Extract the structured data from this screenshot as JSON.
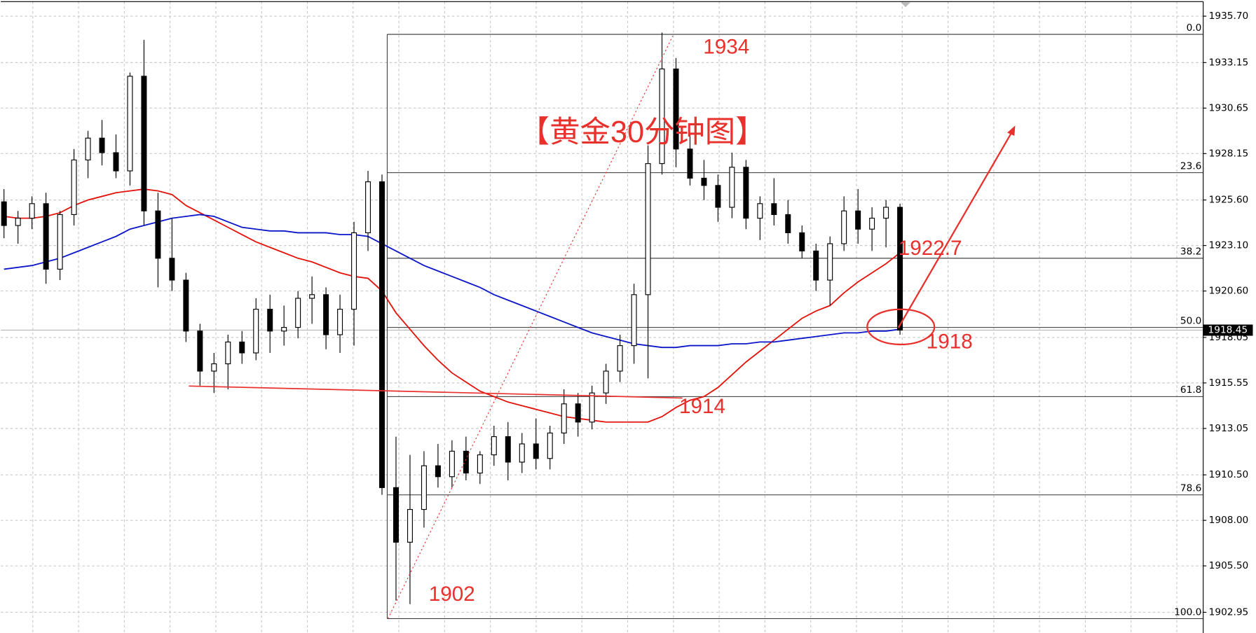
{
  "chart_data": {
    "type": "candlestick",
    "title": "【黄金30分钟图】",
    "annotations": [
      "1934",
      "1922.7",
      "1918",
      "1914",
      "1902"
    ],
    "ylim": [
      1901.9,
      1936.5
    ],
    "yticks": [
      {
        "value": 1935.7,
        "label": "1935.70"
      },
      {
        "value": 1933.15,
        "label": "1933.15"
      },
      {
        "value": 1930.65,
        "label": "1930.65"
      },
      {
        "value": 1928.15,
        "label": "1928.15"
      },
      {
        "value": 1925.6,
        "label": "1925.60"
      },
      {
        "value": 1923.1,
        "label": "1923.10"
      },
      {
        "value": 1920.6,
        "label": "1920.60"
      },
      {
        "value": 1918.05,
        "label": "1918.05"
      },
      {
        "value": 1915.55,
        "label": "1915.55"
      },
      {
        "value": 1913.05,
        "label": "1913.05"
      },
      {
        "value": 1910.5,
        "label": "1910.50"
      },
      {
        "value": 1908.0,
        "label": "1908.00"
      },
      {
        "value": 1905.5,
        "label": "1905.50"
      },
      {
        "value": 1902.95,
        "label": "1902.95"
      }
    ],
    "grid": true,
    "current_price": {
      "value": 1918.45,
      "label": "1918.45"
    },
    "fib": [
      {
        "label": "0.0",
        "price": 1934.7
      },
      {
        "label": "23.6",
        "price": 1927.1
      },
      {
        "label": "38.2",
        "price": 1922.4
      },
      {
        "label": "50.0",
        "price": 1918.6
      },
      {
        "label": "61.8",
        "price": 1914.8
      },
      {
        "label": "78.6",
        "price": 1909.4
      },
      {
        "label": "100.0",
        "price": 1902.6
      }
    ],
    "open": [
      1925.5,
      1924.2,
      1924.6,
      1925.4,
      1921.8,
      1924.8,
      1927.8,
      1929,
      1928.2,
      1927.2,
      1932.4,
      1925,
      1922.4,
      1921.2,
      1918.4,
      1916.2,
      1916.6,
      1917.8,
      1917.2,
      1919.6,
      1918.4,
      1918.6,
      1920.2,
      1920.4,
      1918.2,
      1919.6,
      1923.8,
      1926.6,
      1909.8,
      1906.8,
      1908.6,
      1911,
      1910.4,
      1911.8,
      1910.6,
      1911.6,
      1912.6,
      1911.2,
      1912.2,
      1911.4,
      1912.8,
      1914.4,
      1913.4,
      1915,
      1916.2,
      1917.6,
      1920.4,
      1927.6,
      1932.8,
      1928.4,
      1926.8,
      1926.4,
      1925.2,
      1927.4,
      1924.6,
      1925.4,
      1924.8,
      1923.8,
      1922.8,
      1921.2,
      1923.2,
      1925,
      1924,
      1924.6,
      1925.2
    ],
    "high": [
      1926.2,
      1925,
      1925.8,
      1926,
      1925,
      1928.4,
      1929.4,
      1930,
      1929.2,
      1932.6,
      1934.4,
      1926,
      1924.6,
      1921.6,
      1918.8,
      1917.2,
      1918.2,
      1918.4,
      1920.2,
      1920.4,
      1919.8,
      1920.6,
      1921.4,
      1920.8,
      1920.4,
      1924.4,
      1927.2,
      1927,
      1912.6,
      1911.6,
      1911.8,
      1912.2,
      1912.4,
      1912.6,
      1911.8,
      1913.2,
      1913.4,
      1912.8,
      1913.6,
      1913.2,
      1915.2,
      1915,
      1915.4,
      1916.6,
      1918.2,
      1921,
      1928.6,
      1934.8,
      1933.4,
      1929.2,
      1927.8,
      1927,
      1928.2,
      1927.8,
      1925.8,
      1926.8,
      1925.6,
      1924.2,
      1923.2,
      1923.6,
      1925.8,
      1926.2,
      1925.2,
      1925.6,
      1925.4
    ],
    "low": [
      1923.5,
      1923.2,
      1924,
      1921,
      1921.2,
      1924.2,
      1926.8,
      1927.5,
      1926.8,
      1926.4,
      1924.2,
      1920.8,
      1920.6,
      1917.8,
      1915.4,
      1915,
      1915.2,
      1916.6,
      1916.8,
      1917.2,
      1917.6,
      1918,
      1918.8,
      1917.4,
      1917.2,
      1917.6,
      1922.8,
      1909.4,
      1903.6,
      1903.4,
      1907.6,
      1909.8,
      1909.8,
      1910.2,
      1910,
      1911,
      1910.2,
      1910.6,
      1910.8,
      1910.8,
      1912.2,
      1912.6,
      1913,
      1914.4,
      1915.6,
      1916.6,
      1915.8,
      1927,
      1927.4,
      1926.4,
      1925.6,
      1924.4,
      1924.6,
      1924,
      1923.4,
      1924.2,
      1923.2,
      1922.4,
      1920.6,
      1919.8,
      1922.8,
      1923.2,
      1922.8,
      1923,
      1918.2
    ],
    "close": [
      1924.2,
      1924.6,
      1925.4,
      1921.8,
      1924.8,
      1927.8,
      1929,
      1928.2,
      1927.2,
      1932.4,
      1925,
      1922.4,
      1921.2,
      1918.4,
      1916.2,
      1916.6,
      1917.8,
      1917.2,
      1919.6,
      1918.4,
      1918.6,
      1920.2,
      1920.4,
      1918.2,
      1919.6,
      1923.8,
      1926.6,
      1909.8,
      1906.8,
      1908.6,
      1911,
      1910.4,
      1911.8,
      1910.6,
      1911.6,
      1912.6,
      1911.2,
      1912.2,
      1911.4,
      1912.8,
      1914.4,
      1913.4,
      1915,
      1916.2,
      1917.6,
      1920.4,
      1927.6,
      1932.8,
      1928.4,
      1926.8,
      1926.4,
      1925.2,
      1927.4,
      1924.6,
      1925.4,
      1924.8,
      1923.8,
      1922.8,
      1921.2,
      1923.2,
      1925,
      1924,
      1924.6,
      1925.2,
      1918.45
    ],
    "lines": [
      {
        "color": "#e3120b",
        "values": [
          1924.7,
          1924.6,
          1924.6,
          1924.7,
          1924.9,
          1925.3,
          1925.6,
          1925.8,
          1926.0,
          1926.1,
          1926.2,
          1926.1,
          1925.9,
          1925.3,
          1924.9,
          1924.5,
          1924.1,
          1923.7,
          1923.3,
          1923.0,
          1922.7,
          1922.4,
          1922.2,
          1921.9,
          1921.6,
          1921.4,
          1921.3,
          1920.6,
          1919.4,
          1918.5,
          1917.6,
          1916.8,
          1916.1,
          1915.6,
          1915.1,
          1914.8,
          1914.5,
          1914.3,
          1914.1,
          1913.9,
          1913.7,
          1913.6,
          1913.5,
          1913.4,
          1913.4,
          1913.4,
          1913.4,
          1913.7,
          1914.2,
          1914.6,
          1914.8,
          1915.3,
          1916.0,
          1916.7,
          1917.3,
          1917.9,
          1918.5,
          1919.1,
          1919.5,
          1919.8,
          1920.5,
          1921.1,
          1921.6,
          1922.1,
          1922.7
        ]
      },
      {
        "color": "#0b16c9",
        "values": [
          1921.8,
          1921.9,
          1922.0,
          1922.2,
          1922.4,
          1922.7,
          1923.0,
          1923.3,
          1923.6,
          1924.0,
          1924.2,
          1924.4,
          1924.6,
          1924.7,
          1924.8,
          1924.7,
          1924.4,
          1924.1,
          1924.0,
          1923.9,
          1923.9,
          1923.8,
          1923.8,
          1923.8,
          1923.7,
          1923.7,
          1923.6,
          1923.2,
          1922.8,
          1922.4,
          1922.0,
          1921.7,
          1921.4,
          1921.1,
          1920.8,
          1920.4,
          1920.1,
          1919.8,
          1919.5,
          1919.2,
          1918.9,
          1918.6,
          1918.3,
          1918.1,
          1917.9,
          1917.7,
          1917.6,
          1917.5,
          1917.5,
          1917.6,
          1917.6,
          1917.6,
          1917.7,
          1917.7,
          1917.8,
          1917.8,
          1917.9,
          1918.0,
          1918.1,
          1918.2,
          1918.3,
          1918.3,
          1918.4,
          1918.4,
          1918.5
        ]
      }
    ]
  }
}
